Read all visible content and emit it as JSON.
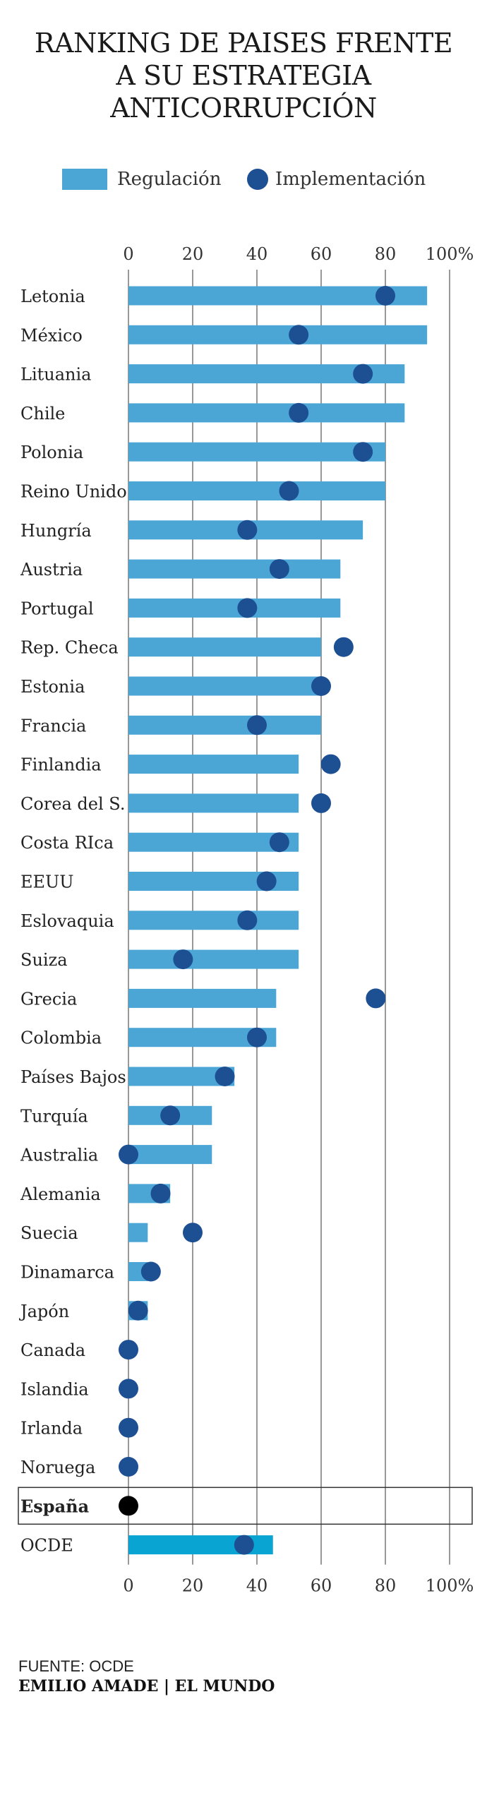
{
  "title_lines": [
    "RANKING DE PAISES FRENTE",
    "A SU ESTRATEGIA",
    "ANTICORRUPCIÓN"
  ],
  "colors": {
    "regulacion": "#4ba6d6",
    "implementacion": "#1d4f93",
    "espana_dot": "#000000",
    "ocde_bar": "#0aa4d2"
  },
  "footer": {
    "source": "FUENTE: OCDE",
    "credit": "EMILIO AMADE | EL MUNDO"
  },
  "chart_data": {
    "type": "bar",
    "orientation": "horizontal",
    "title": "RANKING DE PAISES FRENTE A SU ESTRATEGIA ANTICORRUPCIÓN",
    "legend": [
      "Regulación",
      "Implementación"
    ],
    "legend_position": "top",
    "xlim": [
      0,
      100
    ],
    "xticks": [
      "0",
      "20",
      "40",
      "60",
      "80",
      "100%"
    ],
    "grid": true,
    "highlighted_category": "España",
    "categories": [
      "Letonia",
      "México",
      "Lituania",
      "Chile",
      "Polonia",
      "Reino Unido",
      "Hungría",
      "Austria",
      "Portugal",
      "Rep. Checa",
      "Estonia",
      "Francia",
      "Finlandia",
      "Corea del S.",
      "Costa RIca",
      "EEUU",
      "Eslovaquia",
      "Suiza",
      "Grecia",
      "Colombia",
      "Países Bajos",
      "Turquía",
      "Australia",
      "Alemania",
      "Suecia",
      "Dinamarca",
      "Japón",
      "Canada",
      "Islandia",
      "Irlanda",
      "Noruega",
      "España",
      "OCDE"
    ],
    "series": [
      {
        "name": "Regulación",
        "kind": "bar",
        "values": [
          93,
          93,
          86,
          86,
          80,
          80,
          73,
          66,
          66,
          60,
          60,
          60,
          53,
          53,
          53,
          53,
          53,
          53,
          46,
          46,
          33,
          26,
          26,
          13,
          6,
          6,
          6,
          0,
          0,
          0,
          0,
          0,
          45
        ]
      },
      {
        "name": "Implementación",
        "kind": "dot",
        "values": [
          80,
          53,
          73,
          53,
          73,
          50,
          37,
          47,
          37,
          67,
          60,
          40,
          63,
          60,
          47,
          43,
          37,
          17,
          77,
          40,
          30,
          13,
          0,
          10,
          20,
          7,
          3,
          0,
          0,
          0,
          0,
          0,
          36
        ]
      }
    ]
  }
}
